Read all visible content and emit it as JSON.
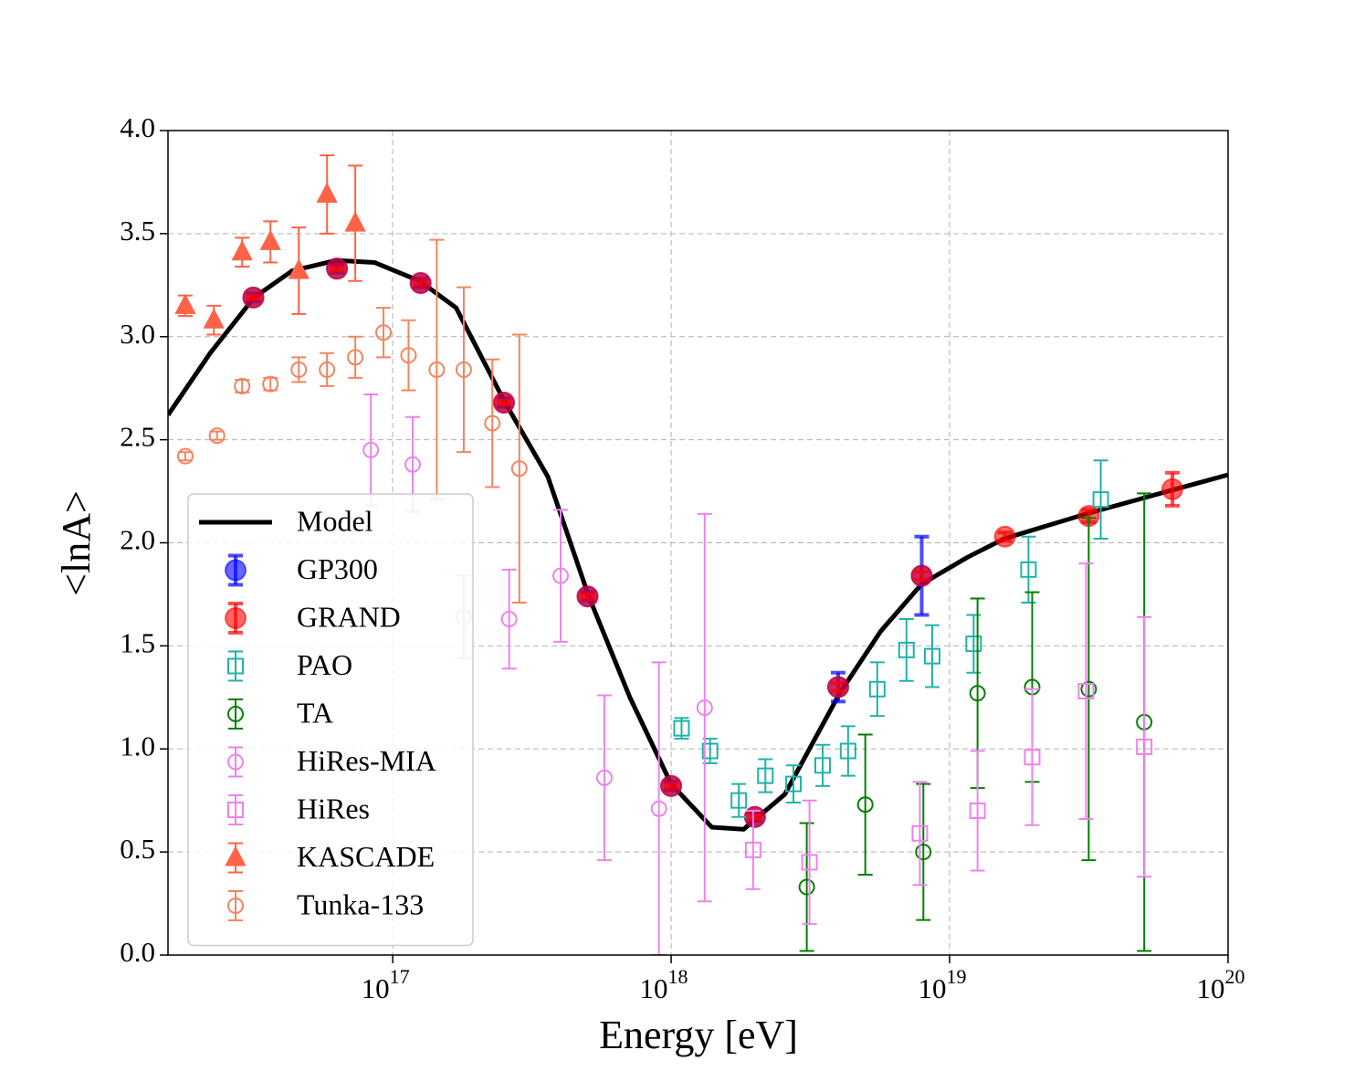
{
  "chart_data": {
    "type": "errorbar",
    "xlabel": "Energy [eV]",
    "ylabel": "<lnA>",
    "xscale": "log",
    "xlim": [
      1.56e+16,
      1e+20
    ],
    "xticks": [
      {
        "value": 1e+17,
        "label": "10",
        "exponent": "17"
      },
      {
        "value": 1e+18,
        "label": "10",
        "exponent": "18"
      },
      {
        "value": 1e+19,
        "label": "10",
        "exponent": "19"
      },
      {
        "value": 1e+20,
        "label": "10",
        "exponent": "20"
      }
    ],
    "ylim": [
      0,
      4
    ],
    "yticks": [
      {
        "value": 0,
        "label": "0.0"
      },
      0.5,
      {
        "value": 1,
        "label": "1.0"
      },
      1.5,
      {
        "value": 2,
        "label": "2.0"
      },
      2.5,
      {
        "value": 3,
        "label": "3.0"
      },
      3.5,
      {
        "value": 4,
        "label": "4.0"
      }
    ],
    "grid": true,
    "legend": "lower left",
    "series": [
      {
        "name": "Model",
        "marker": "line",
        "color": "#000000",
        "x": [
          1.56e+16,
          2.21e+16,
          3.18e+16,
          4.36e+16,
          6.27e+16,
          8.6e+16,
          1.25e+17,
          1.69e+17,
          2.51e+17,
          3.61e+17,
          5.06e+17,
          7.11e+17,
          1e+18,
          1.4e+18,
          1.82e+18,
          2.56e+18,
          4.03e+18,
          5.65e+18,
          7.94e+18,
          1.16e+19,
          1.57e+19,
          3.09e+19,
          6.08e+19,
          1e+20
        ],
        "values": [
          2.62,
          2.92,
          3.19,
          3.32,
          3.37,
          3.36,
          3.27,
          3.14,
          2.69,
          2.32,
          1.74,
          1.25,
          0.83,
          0.62,
          0.61,
          0.78,
          1.27,
          1.57,
          1.8,
          1.93,
          2.02,
          2.14,
          2.25,
          2.33
        ]
      },
      {
        "name": "GP300",
        "marker": "o",
        "filled": true,
        "color": "#0000ff",
        "x": [
          3.16e+16,
          6.31e+16,
          1.26e+17,
          2.51e+17,
          5.01e+17,
          1e+18,
          2e+18,
          3.98e+18,
          7.94e+18
        ],
        "values": [
          3.19,
          3.33,
          3.26,
          2.68,
          1.74,
          0.82,
          0.67,
          1.3,
          1.84
        ],
        "errors": [
          0.02,
          0.02,
          0.02,
          0.02,
          0.02,
          0.02,
          0.02,
          0.07,
          0.19
        ]
      },
      {
        "name": "GRAND",
        "marker": "o",
        "filled": true,
        "color": "#ff0000",
        "x": [
          3.16e+16,
          6.31e+16,
          1.26e+17,
          2.51e+17,
          5.01e+17,
          1e+18,
          2e+18,
          3.98e+18,
          7.94e+18,
          1.58e+19,
          3.16e+19,
          6.31e+19
        ],
        "values": [
          3.19,
          3.33,
          3.26,
          2.68,
          1.74,
          0.82,
          0.67,
          1.3,
          1.84,
          2.03,
          2.13,
          2.26
        ],
        "errors": [
          0.01,
          0.01,
          0.01,
          0.01,
          0.01,
          0.01,
          0.01,
          0.02,
          0.02,
          0.02,
          0.03,
          0.08
        ]
      },
      {
        "name": "PAO",
        "marker": "s",
        "color": "#20b2aa",
        "x": [
          1.09e+18,
          1.38e+18,
          1.75e+18,
          2.18e+18,
          2.75e+18,
          3.5e+18,
          4.32e+18,
          5.5e+18,
          7e+18,
          8.66e+18,
          1.22e+19,
          1.92e+19,
          3.49e+19
        ],
        "values": [
          1.1,
          0.99,
          0.75,
          0.87,
          0.83,
          0.92,
          0.99,
          1.29,
          1.48,
          1.45,
          1.51,
          1.87,
          2.21
        ],
        "errors": [
          0.05,
          0.06,
          0.08,
          0.08,
          0.09,
          0.1,
          0.12,
          0.13,
          0.15,
          0.15,
          0.14,
          0.16,
          0.19
        ]
      },
      {
        "name": "TA",
        "marker": "o",
        "color": "#008000",
        "x": [
          3.07e+18,
          4.98e+18,
          8.05e+18,
          1.26e+19,
          1.98e+19,
          3.16e+19,
          5e+19
        ],
        "values": [
          0.33,
          0.73,
          0.5,
          1.27,
          1.3,
          1.29,
          1.13
        ],
        "errors": [
          0.31,
          0.34,
          0.33,
          0.46,
          0.46,
          0.83,
          1.11
        ]
      },
      {
        "name": "HiRes-MIA",
        "marker": "o",
        "color": "#ee82ee",
        "x": [
          8.35e+16,
          1.18e+17,
          1.8e+17,
          2.62e+17,
          4.01e+17,
          5.76e+17,
          9.04e+17,
          1.32e+18
        ],
        "values": [
          2.45,
          2.38,
          1.64,
          1.63,
          1.84,
          0.86,
          0.71,
          1.2
        ],
        "errors": [
          0.27,
          0.23,
          0.2,
          0.24,
          0.32,
          0.4,
          0.71,
          0.94
        ]
      },
      {
        "name": "HiRes",
        "marker": "s",
        "color": "#ee82ee",
        "x": [
          1.97e+18,
          3.14e+18,
          7.82e+18,
          1.26e+19,
          1.98e+19,
          3.09e+19,
          5e+19
        ],
        "values": [
          0.51,
          0.45,
          0.59,
          0.7,
          0.96,
          1.28,
          1.01
        ],
        "errors": [
          0.19,
          0.3,
          0.25,
          0.29,
          0.33,
          0.62,
          0.63
        ]
      },
      {
        "name": "KASCADE",
        "marker": "^",
        "filled": true,
        "color": "#ff6347",
        "x": [
          1.8e+16,
          2.28e+16,
          2.88e+16,
          3.64e+16,
          4.6e+16,
          5.81e+16,
          7.34e+16
        ],
        "values": [
          3.15,
          3.08,
          3.41,
          3.46,
          3.32,
          3.69,
          3.55
        ],
        "errors": [
          0.05,
          0.07,
          0.07,
          0.1,
          0.21,
          0.19,
          0.28
        ]
      },
      {
        "name": "Tunka-133",
        "marker": "o",
        "color": "#f4845f",
        "x": [
          1.8e+16,
          2.34e+16,
          2.88e+16,
          3.64e+16,
          4.6e+16,
          5.81e+16,
          7.34e+16,
          9.27e+16,
          1.14e+17,
          1.44e+17,
          1.8e+17,
          2.28e+17,
          2.85e+17
        ],
        "values": [
          2.42,
          2.52,
          2.76,
          2.77,
          2.84,
          2.84,
          2.9,
          3.02,
          2.91,
          2.84,
          2.84,
          2.58,
          2.36
        ],
        "errors": [
          0.02,
          0.02,
          0.03,
          0.03,
          0.06,
          0.08,
          0.1,
          0.12,
          0.17,
          0.63,
          0.4,
          0.31,
          0.65
        ]
      }
    ]
  }
}
